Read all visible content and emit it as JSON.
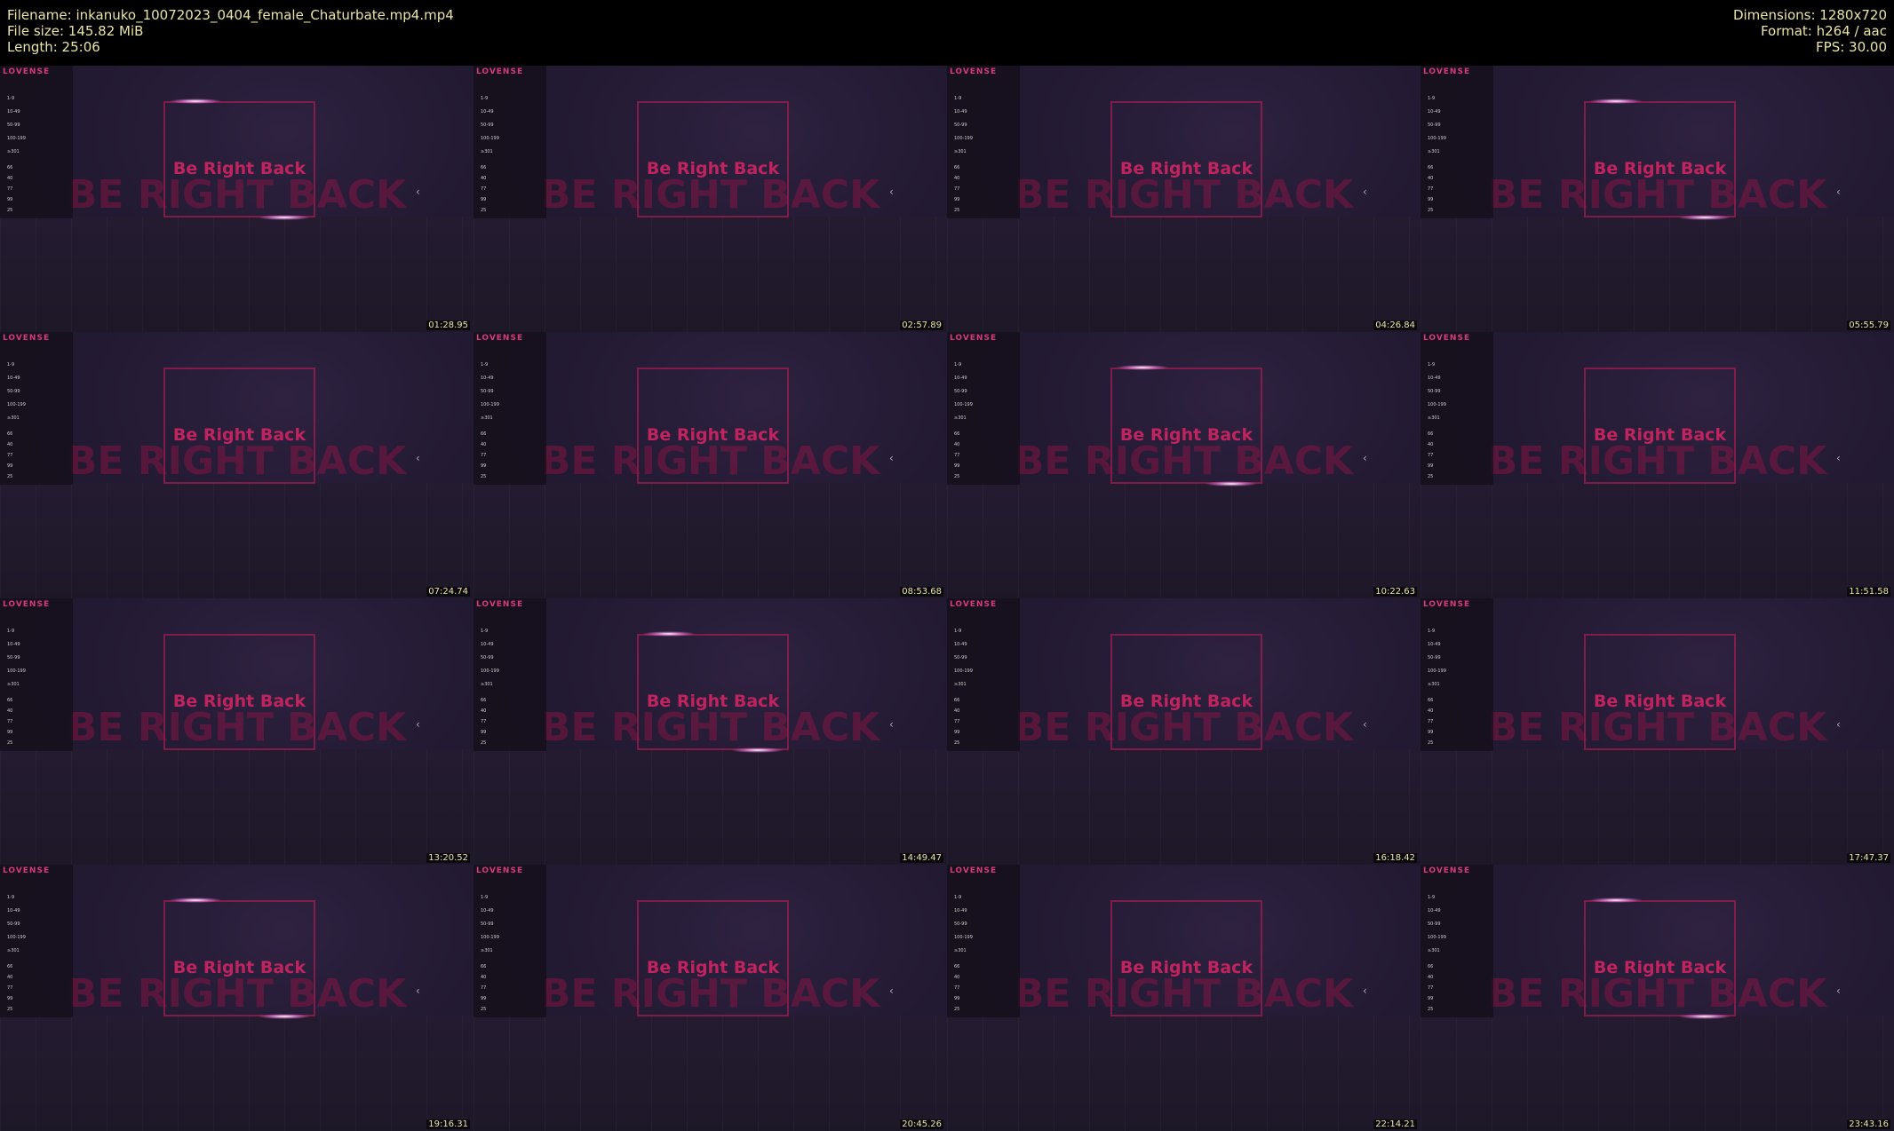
{
  "header": {
    "left": [
      "Filename: inkanuko_10072023_0404_female_Chaturbate.mp4.mp4",
      "File size: 145.82 MiB",
      "Length: 25:06"
    ],
    "right": [
      "Dimensions: 1280x720",
      "Format: h264 / aac",
      "FPS: 30.00"
    ]
  },
  "overlay": {
    "brand": "LOVENSE",
    "title": "Be Right Back",
    "background_text": "BE RIGHT BACK",
    "levels": [
      "1-9",
      "10-49",
      "50-99",
      "100-199",
      "≥301"
    ],
    "patterns": [
      "66",
      "40",
      "77",
      "99",
      "25"
    ]
  },
  "thumbnails": [
    {
      "timestamp": "01:28.95"
    },
    {
      "timestamp": "02:57.89"
    },
    {
      "timestamp": "04:26.84"
    },
    {
      "timestamp": "05:55.79"
    },
    {
      "timestamp": "07:24.74"
    },
    {
      "timestamp": "08:53.68"
    },
    {
      "timestamp": "10:22.63"
    },
    {
      "timestamp": "11:51.58"
    },
    {
      "timestamp": "13:20.52"
    },
    {
      "timestamp": "14:49.47"
    },
    {
      "timestamp": "16:18.42"
    },
    {
      "timestamp": "17:47.37"
    },
    {
      "timestamp": "19:16.31"
    },
    {
      "timestamp": "20:45.26"
    },
    {
      "timestamp": "22:14.21"
    },
    {
      "timestamp": "23:43.16"
    }
  ]
}
